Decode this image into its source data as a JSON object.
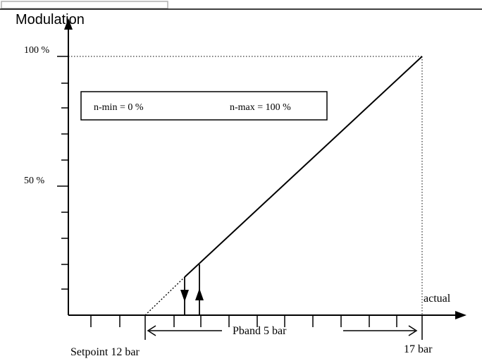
{
  "axis": {
    "y_title": "Modulation",
    "y_tick_top": "100 %",
    "y_tick_mid": "50 %",
    "x_title": "actual"
  },
  "legend_box": {
    "n_min": "n-min = 0 %",
    "n_max": "n-max = 100 %"
  },
  "x_labels": {
    "setpoint": "Setpoint 12 bar",
    "end": "17 bar",
    "pband": "Pband 5 bar"
  },
  "colors": {
    "line": "#000000",
    "background": "#ffffff",
    "tab_border": "#b0b0b0"
  }
}
